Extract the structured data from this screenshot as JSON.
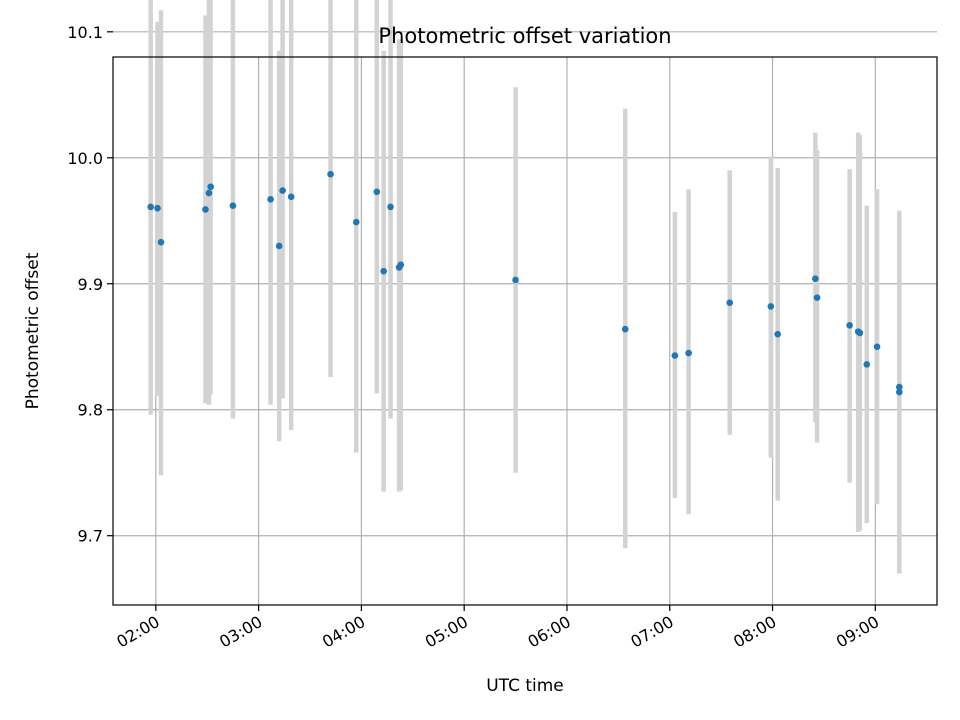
{
  "chart_data": {
    "type": "scatter",
    "title": "Photometric offset variation",
    "xlabel": "UTC time",
    "ylabel": "Photometric offset",
    "xlim": [
      "01:35",
      "09:36"
    ],
    "ylim": [
      9.645,
      10.08
    ],
    "grid": true,
    "x_ticks": [
      "02:00",
      "03:00",
      "04:00",
      "05:00",
      "06:00",
      "07:00",
      "08:00",
      "09:00"
    ],
    "y_ticks": [
      "9.7",
      "9.8",
      "9.9",
      "10.0",
      "10.1"
    ],
    "y_tick_values": [
      9.7,
      9.8,
      9.9,
      10.0,
      10.1
    ],
    "colors": {
      "point": "#1f77b4",
      "errorbar": "#d3d3d3",
      "grid": "#b0b0b0"
    },
    "points": [
      {
        "x": "01:57",
        "y": 9.961,
        "lo": 9.796,
        "hi": 10.126
      },
      {
        "x": "02:01",
        "y": 9.96,
        "lo": 9.811,
        "hi": 10.108
      },
      {
        "x": "02:03",
        "y": 9.933,
        "lo": 9.748,
        "hi": 10.117
      },
      {
        "x": "02:29",
        "y": 9.959,
        "lo": 9.805,
        "hi": 10.113
      },
      {
        "x": "02:31",
        "y": 9.972,
        "lo": 9.804,
        "hi": 10.142
      },
      {
        "x": "02:32",
        "y": 9.977,
        "lo": 9.812,
        "hi": 10.142
      },
      {
        "x": "02:45",
        "y": 9.962,
        "lo": 9.793,
        "hi": 10.129
      },
      {
        "x": "03:07",
        "y": 9.967,
        "lo": 9.804,
        "hi": 10.131
      },
      {
        "x": "03:12",
        "y": 9.93,
        "lo": 9.775,
        "hi": 10.085
      },
      {
        "x": "03:14",
        "y": 9.974,
        "lo": 9.809,
        "hi": 10.138
      },
      {
        "x": "03:19",
        "y": 9.969,
        "lo": 9.784,
        "hi": 10.155
      },
      {
        "x": "03:42",
        "y": 9.987,
        "lo": 9.826,
        "hi": 10.149
      },
      {
        "x": "03:57",
        "y": 9.949,
        "lo": 9.766,
        "hi": 10.131
      },
      {
        "x": "04:09",
        "y": 9.973,
        "lo": 9.813,
        "hi": 10.132
      },
      {
        "x": "04:13",
        "y": 9.91,
        "lo": 9.735,
        "hi": 10.085
      },
      {
        "x": "04:17",
        "y": 9.961,
        "lo": 9.793,
        "hi": 10.129
      },
      {
        "x": "04:22",
        "y": 9.913,
        "lo": 9.735,
        "hi": 10.094
      },
      {
        "x": "04:23",
        "y": 9.915,
        "lo": 9.736,
        "hi": 10.094
      },
      {
        "x": "05:30",
        "y": 9.903,
        "lo": 9.75,
        "hi": 10.056
      },
      {
        "x": "06:34",
        "y": 9.864,
        "lo": 9.69,
        "hi": 10.039
      },
      {
        "x": "07:03",
        "y": 9.843,
        "lo": 9.73,
        "hi": 9.957
      },
      {
        "x": "07:11",
        "y": 9.845,
        "lo": 9.717,
        "hi": 9.975
      },
      {
        "x": "07:35",
        "y": 9.885,
        "lo": 9.78,
        "hi": 9.99
      },
      {
        "x": "07:59",
        "y": 9.882,
        "lo": 9.762,
        "hi": 10.001
      },
      {
        "x": "08:03",
        "y": 9.86,
        "lo": 9.728,
        "hi": 9.992
      },
      {
        "x": "08:25",
        "y": 9.904,
        "lo": 9.79,
        "hi": 10.02
      },
      {
        "x": "08:26",
        "y": 9.889,
        "lo": 9.774,
        "hi": 10.006
      },
      {
        "x": "08:45",
        "y": 9.867,
        "lo": 9.742,
        "hi": 9.991
      },
      {
        "x": "08:50",
        "y": 9.862,
        "lo": 9.703,
        "hi": 10.02
      },
      {
        "x": "08:51",
        "y": 9.861,
        "lo": 9.704,
        "hi": 10.018
      },
      {
        "x": "08:55",
        "y": 9.836,
        "lo": 9.71,
        "hi": 9.962
      },
      {
        "x": "09:01",
        "y": 9.85,
        "lo": 9.725,
        "hi": 9.975
      },
      {
        "x": "09:14",
        "y": 9.818,
        "lo": 9.683,
        "hi": 9.952
      },
      {
        "x": "09:14",
        "y": 9.814,
        "lo": 9.67,
        "hi": 9.958
      }
    ]
  }
}
